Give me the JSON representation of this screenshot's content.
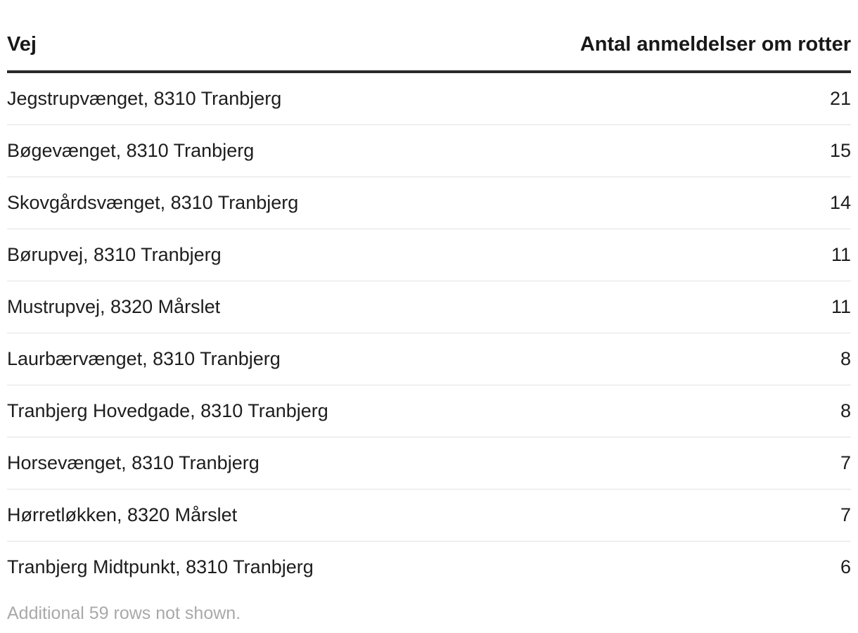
{
  "chart_data": {
    "type": "table",
    "columns": [
      "Vej",
      "Antal anmeldelser om rotter"
    ],
    "rows": [
      {
        "street": "Jegstrupvænget, 8310 Tranbjerg",
        "count": "21"
      },
      {
        "street": "Bøgevænget, 8310 Tranbjerg",
        "count": "15"
      },
      {
        "street": "Skovgårdsvænget, 8310 Tranbjerg",
        "count": "14"
      },
      {
        "street": "Børupvej, 8310 Tranbjerg",
        "count": "11"
      },
      {
        "street": "Mustrupvej, 8320 Mårslet",
        "count": "11"
      },
      {
        "street": "Laurbærvænget, 8310 Tranbjerg",
        "count": "8"
      },
      {
        "street": "Tranbjerg Hovedgade, 8310 Tranbjerg",
        "count": "8"
      },
      {
        "street": "Horsevænget, 8310 Tranbjerg",
        "count": "7"
      },
      {
        "street": "Hørretløkken, 8320 Mårslet",
        "count": "7"
      },
      {
        "street": "Tranbjerg Midtpunkt, 8310 Tranbjerg",
        "count": "6"
      }
    ],
    "footnote": "Additional 59 rows not shown."
  }
}
